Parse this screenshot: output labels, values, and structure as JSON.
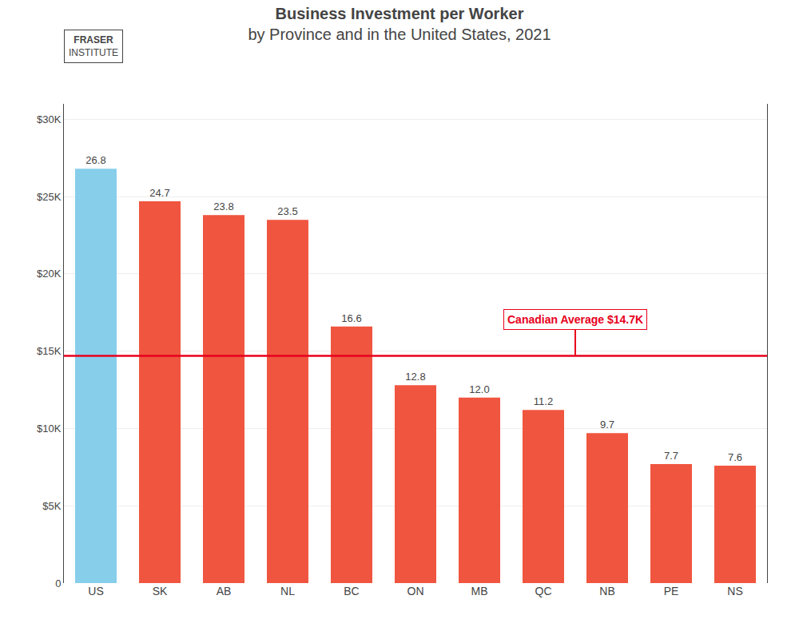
{
  "chart_data": {
    "type": "bar",
    "title": "Business Investment per Worker",
    "subtitle": "by Province and in the United States, 2021",
    "categories": [
      "US",
      "SK",
      "AB",
      "NL",
      "BC",
      "ON",
      "MB",
      "QC",
      "NB",
      "PE",
      "NS"
    ],
    "values": [
      26800,
      24700,
      23800,
      23500,
      16600,
      12800,
      12000,
      11200,
      9700,
      7700,
      7600
    ],
    "value_labels": [
      "26.8",
      "24.7",
      "23.8",
      "23.5",
      "16.6",
      "12.8",
      "12.0",
      "11.2",
      "9.7",
      "7.7",
      "7.6"
    ],
    "data_labels": true,
    "colors": [
      "#87CEEB",
      "#F05540",
      "#F05540",
      "#F05540",
      "#F05540",
      "#F05540",
      "#F05540",
      "#F05540",
      "#F05540",
      "#F05540",
      "#F05540"
    ],
    "ylim": [
      0,
      31000
    ],
    "yticks": [
      0,
      {
        "value": 5000,
        "label": "$5K"
      },
      {
        "value": 10000,
        "label": "$10K"
      },
      {
        "value": 15000,
        "label": "$15K"
      },
      {
        "value": 20000,
        "label": "$20K"
      },
      {
        "value": 25000,
        "label": "$25K"
      },
      {
        "value": 30000,
        "label": "$30K"
      }
    ],
    "grid": true,
    "reference_line": {
      "value": 14700,
      "label": "Canadian Average $14.7K",
      "color": "#e8001c"
    },
    "annotations": [
      "FRASER",
      "INSTITUTE"
    ]
  }
}
